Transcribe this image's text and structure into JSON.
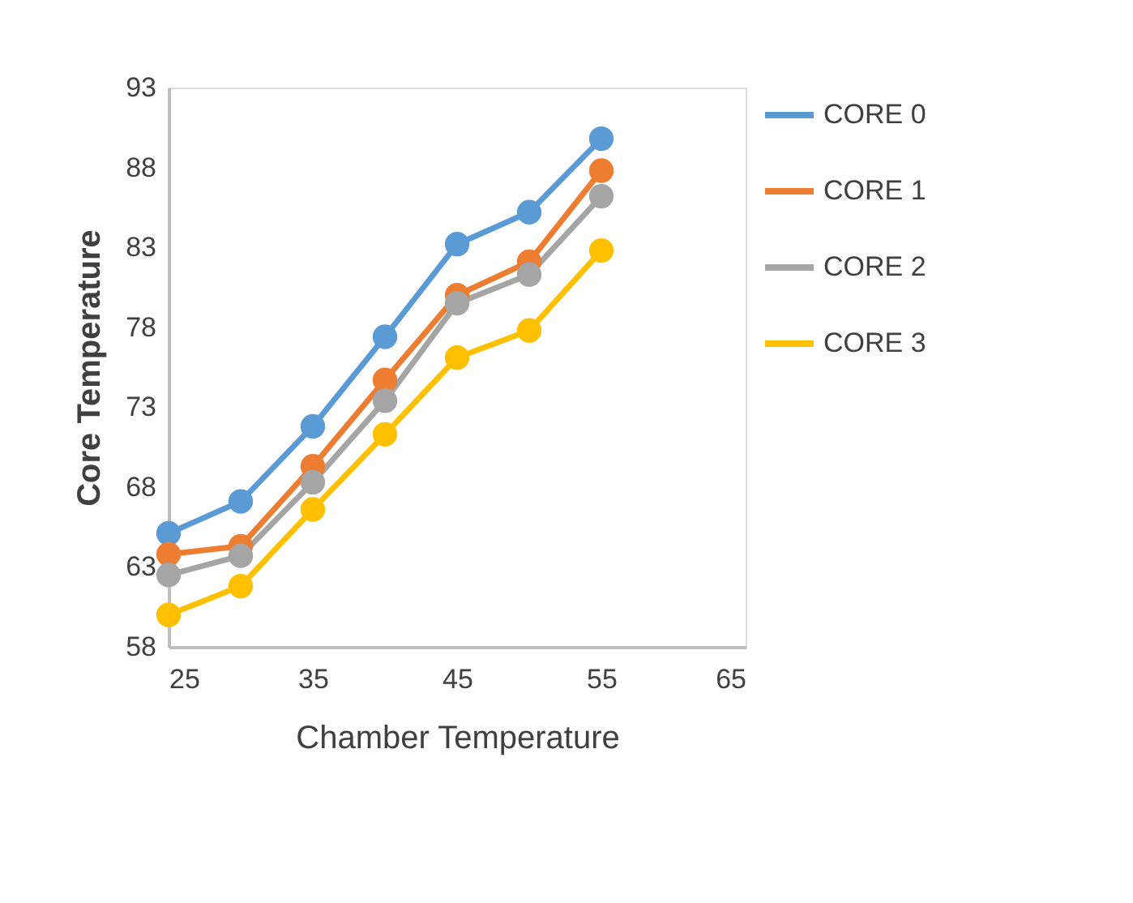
{
  "chart_data": {
    "type": "line",
    "xlabel": "Chamber Temperature",
    "ylabel": "Core Temperature",
    "x": [
      25,
      30,
      35,
      40,
      45,
      50,
      55
    ],
    "series": [
      {
        "name": "CORE 0",
        "color": "#5b9bd5",
        "values": [
          65.1,
          67.1,
          71.8,
          77.4,
          83.2,
          85.2,
          89.8
        ]
      },
      {
        "name": "CORE 1",
        "color": "#ed7d31",
        "values": [
          63.8,
          64.3,
          69.3,
          74.7,
          80.0,
          82.1,
          87.8
        ]
      },
      {
        "name": "CORE 2",
        "color": "#a5a5a5",
        "values": [
          62.5,
          63.7,
          68.3,
          73.4,
          79.5,
          81.3,
          86.2
        ]
      },
      {
        "name": "CORE 3",
        "color": "#ffc000",
        "values": [
          60.0,
          61.8,
          66.6,
          71.3,
          76.1,
          77.8,
          82.8
        ]
      }
    ],
    "xlim": [
      25,
      65
    ],
    "xticks": [
      25,
      35,
      45,
      55,
      65
    ],
    "ylim": [
      58,
      93
    ],
    "yticks": [
      58,
      63,
      68,
      73,
      78,
      83,
      88,
      93
    ],
    "grid": false,
    "legend": "right",
    "marker": "circle",
    "line_style": "solid"
  }
}
